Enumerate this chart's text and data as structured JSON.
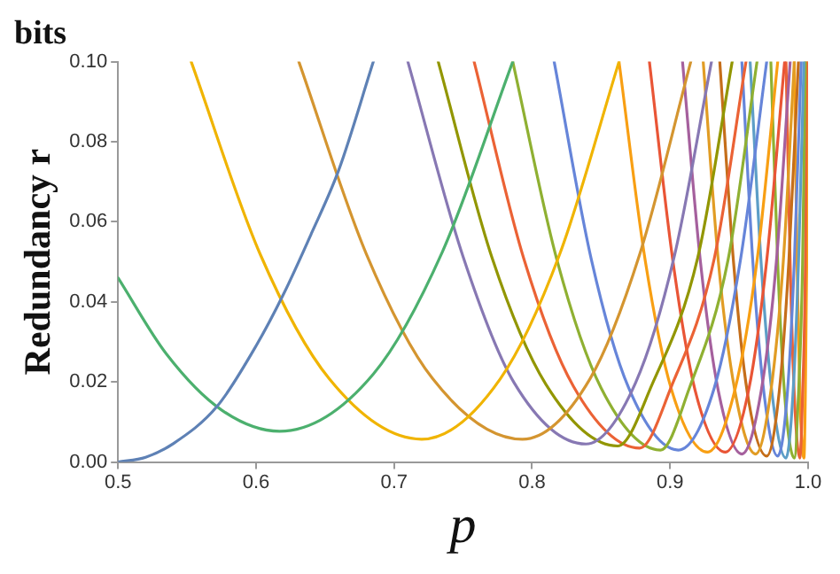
{
  "chart_data": {
    "type": "line",
    "title": "bits",
    "xlabel": "p",
    "ylabel": "Redundancy r",
    "xlim": [
      0.5,
      1.0
    ],
    "xticks": [
      0.5,
      0.6,
      0.7,
      0.8,
      0.9,
      {
        "value": 1,
        "label": "1.0"
      }
    ],
    "ylim": [
      0,
      0.1
    ],
    "yticks": [
      {
        "value": 0,
        "label": "0.00"
      },
      {
        "value": 0.02,
        "label": "0.02"
      },
      {
        "value": 0.04,
        "label": "0.04"
      },
      {
        "value": 0.06,
        "label": "0.06"
      },
      {
        "value": 0.08,
        "label": "0.08"
      },
      {
        "value": 0.1,
        "label": "0.10"
      }
    ],
    "grid": false,
    "legend": false,
    "marker": "none",
    "line_style": "solid",
    "series": [
      {
        "color": "#5e81b5",
        "x": [
          0.5,
          0.52,
          0.54,
          0.572,
          0.6,
          0.62,
          0.64,
          0.66,
          0.685
        ],
        "values": [
          0,
          0.0012,
          0.0046,
          0.014,
          0.029,
          0.042,
          0.057,
          0.073,
          0.1
        ]
      },
      {
        "color": "#4cb06e",
        "x": [
          0.5,
          0.535,
          0.575,
          0.617,
          0.685,
          0.735,
          0.786
        ],
        "values": [
          0.046,
          0.027,
          0.013,
          0.0077,
          0.022,
          0.0525,
          0.1
        ]
      },
      {
        "color": "#f0b400",
        "x": [
          0.553,
          0.603,
          0.653,
          0.72,
          0.777,
          0.82,
          0.863
        ],
        "values": [
          0.1,
          0.0519,
          0.0208,
          0.0057,
          0.0208,
          0.0519,
          0.1
        ]
      },
      {
        "color": "#d49530",
        "x": [
          0.631,
          0.68,
          0.728,
          0.793,
          0.842,
          0.878,
          0.915
        ],
        "values": [
          0.1,
          0.0519,
          0.0208,
          0.0057,
          0.0208,
          0.0519,
          0.1
        ]
      },
      {
        "color": "#8778b3",
        "x": [
          0.71,
          0.75,
          0.787,
          0.839,
          0.875,
          0.903,
          0.93
        ],
        "values": [
          0.1,
          0.0513,
          0.0198,
          0.0045,
          0.0198,
          0.0513,
          0.1
        ]
      },
      {
        "color": "#929600",
        "x": [
          0.732,
          0.771,
          0.81,
          0.862,
          0.887,
          0.92,
          0.945
        ],
        "values": [
          0.1,
          0.051,
          0.0194,
          0.004,
          0.0194,
          0.051,
          0.1
        ]
      },
      {
        "color": "#eb6235",
        "x": [
          0.758,
          0.794,
          0.83,
          0.878,
          0.901,
          0.932,
          0.955
        ],
        "values": [
          0.1,
          0.0508,
          0.0189,
          0.0035,
          0.0189,
          0.0508,
          0.1
        ]
      },
      {
        "color": "#8fb032",
        "x": [
          0.786,
          0.818,
          0.85,
          0.893,
          0.914,
          0.942,
          0.963
        ],
        "values": [
          0.1,
          0.0505,
          0.0185,
          0.003,
          0.0185,
          0.0505,
          0.1
        ]
      },
      {
        "color": "#6685d9",
        "x": [
          0.816,
          0.843,
          0.87,
          0.906,
          0.932,
          0.951,
          0.97
        ],
        "values": [
          0.1,
          0.0505,
          0.0185,
          0.003,
          0.0185,
          0.0505,
          0.1
        ]
      },
      {
        "color": "#f89f13",
        "x": [
          0.863,
          0.882,
          0.901,
          0.927,
          0.947,
          0.963,
          0.978
        ],
        "values": [
          0.1,
          0.0503,
          0.0181,
          0.0025,
          0.0181,
          0.0503,
          0.1
        ]
      },
      {
        "color": "#e95536",
        "x": [
          0.885,
          0.902,
          0.918,
          0.94,
          0.957,
          0.97,
          0.983
        ],
        "values": [
          0.1,
          0.0503,
          0.0181,
          0.0025,
          0.0181,
          0.0503,
          0.1
        ]
      },
      {
        "color": "#a5609d",
        "x": [
          0.909,
          0.922,
          0.935,
          0.952,
          0.966,
          0.977,
          0.987
        ],
        "values": [
          0.1,
          0.05,
          0.0177,
          0.002,
          0.0177,
          0.05,
          0.1
        ]
      },
      {
        "color": "#e19c24",
        "x": [
          0.924,
          0.935,
          0.947,
          0.962,
          0.973,
          0.982,
          0.99
        ],
        "values": [
          0.1,
          0.05,
          0.0177,
          0.002,
          0.0177,
          0.05,
          0.1
        ]
      },
      {
        "color": "#c56e1a",
        "x": [
          0.936,
          0.946,
          0.956,
          0.97,
          0.979,
          0.986,
          0.993
        ],
        "values": [
          0.1,
          0.0498,
          0.0173,
          0.0015,
          0.0173,
          0.0498,
          0.1
        ]
      },
      {
        "color": "#6685d9",
        "x": [
          0.952,
          0.96,
          0.968,
          0.978,
          0.985,
          0.99,
          0.995
        ],
        "values": [
          0.1,
          0.0498,
          0.0173,
          0.0015,
          0.0173,
          0.0498,
          0.1
        ]
      },
      {
        "color": "#5d9ec7",
        "x": [
          0.958,
          0.966,
          0.974,
          0.984,
          0.989,
          0.993,
          0.997
        ],
        "values": [
          0.1,
          0.0495,
          0.0168,
          0.001,
          0.0168,
          0.0495,
          0.1
        ]
      },
      {
        "color": "#8fb032",
        "x": [
          0.973,
          0.978,
          0.983,
          0.99,
          0.993,
          0.996,
          0.998
        ],
        "values": [
          0.1,
          0.0495,
          0.0168,
          0.001,
          0.0168,
          0.0495,
          0.1
        ]
      },
      {
        "color": "#eb6235",
        "x": [
          0.984,
          0.987,
          0.99,
          0.994,
          0.996,
          0.998,
          0.999
        ],
        "values": [
          0.1,
          0.0495,
          0.0168,
          0.001,
          0.0168,
          0.0495,
          0.1
        ]
      },
      {
        "color": "#f89f13",
        "x": [
          0.99,
          0.992,
          0.994,
          0.997,
          0.998,
          0.999,
          1.0
        ],
        "values": [
          0.1,
          0.0495,
          0.0168,
          0.001,
          0.0168,
          0.0495,
          0.1
        ]
      }
    ]
  }
}
